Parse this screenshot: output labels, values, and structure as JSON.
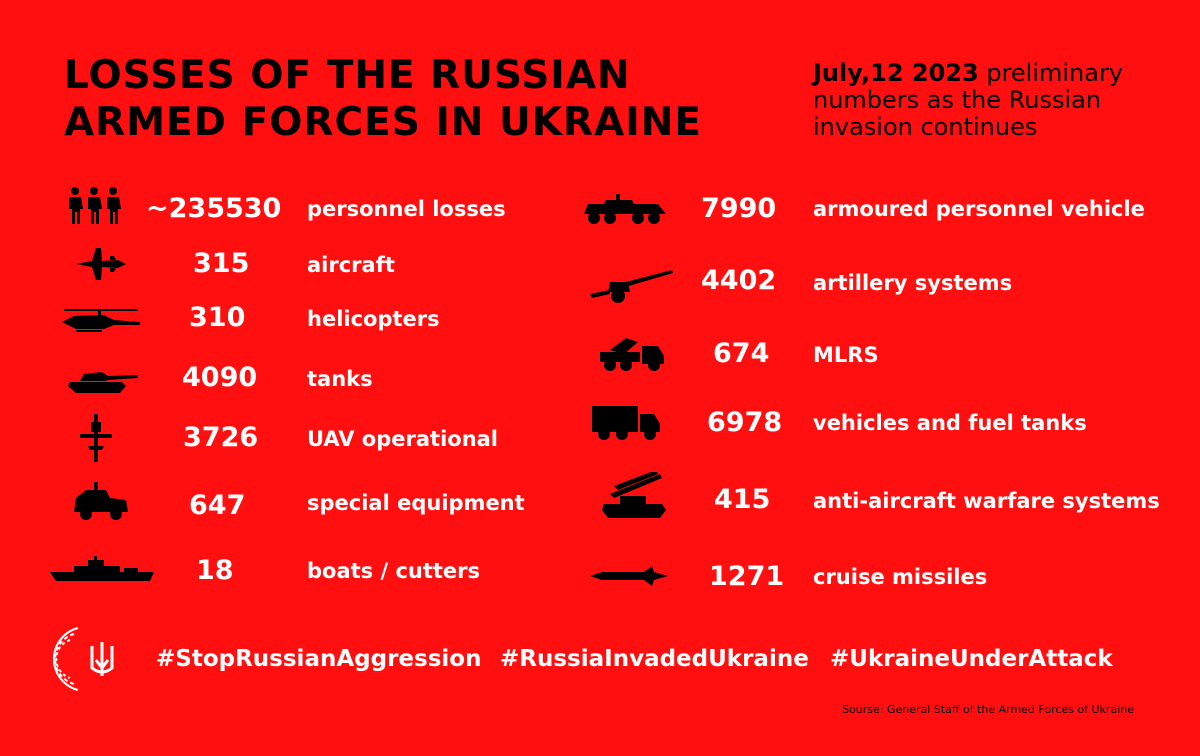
{
  "header": {
    "title_line1": "LOSSES OF THE RUSSIAN",
    "title_line2": "ARMED FORCES IN UKRAINE",
    "date": "July,12 2023",
    "subtitle_rest": " preliminary numbers as the Russian invasion continues"
  },
  "left": [
    {
      "icon": "soldiers-icon",
      "value": "~235530",
      "label": "personnel losses"
    },
    {
      "icon": "aircraft-icon",
      "value": "315",
      "label": "aircraft"
    },
    {
      "icon": "helicopter-icon",
      "value": "310",
      "label": "helicopters"
    },
    {
      "icon": "tank-icon",
      "value": "4090",
      "label": "tanks"
    },
    {
      "icon": "drone-icon",
      "value": "3726",
      "label": "UAV operational"
    },
    {
      "icon": "special-vehicle-icon",
      "value": "647",
      "label": "special equipment"
    },
    {
      "icon": "ship-icon",
      "value": "18",
      "label": "boats / cutters"
    }
  ],
  "right": [
    {
      "icon": "apc-icon",
      "value": "7990",
      "label": "armoured personnel vehicle"
    },
    {
      "icon": "artillery-icon",
      "value": "4402",
      "label": "artillery systems"
    },
    {
      "icon": "mlrs-icon",
      "value": "674",
      "label": "MLRS"
    },
    {
      "icon": "truck-icon",
      "value": "6978",
      "label": "vehicles and fuel tanks"
    },
    {
      "icon": "air-defense-icon",
      "value": "415",
      "label": "anti-aircraft warfare systems"
    },
    {
      "icon": "missile-icon",
      "value": "1271",
      "label": "cruise missiles"
    }
  ],
  "hashtags": [
    "#StopRussianAggression",
    "#RussiaInvadedUkraine",
    "#UkraineUnderAttack"
  ],
  "source": "Sourse: General Staff of the Armed Forces of Ukraine",
  "colors": {
    "background": "#ff0f0f",
    "text": "#ffffff",
    "title": "#000000"
  }
}
